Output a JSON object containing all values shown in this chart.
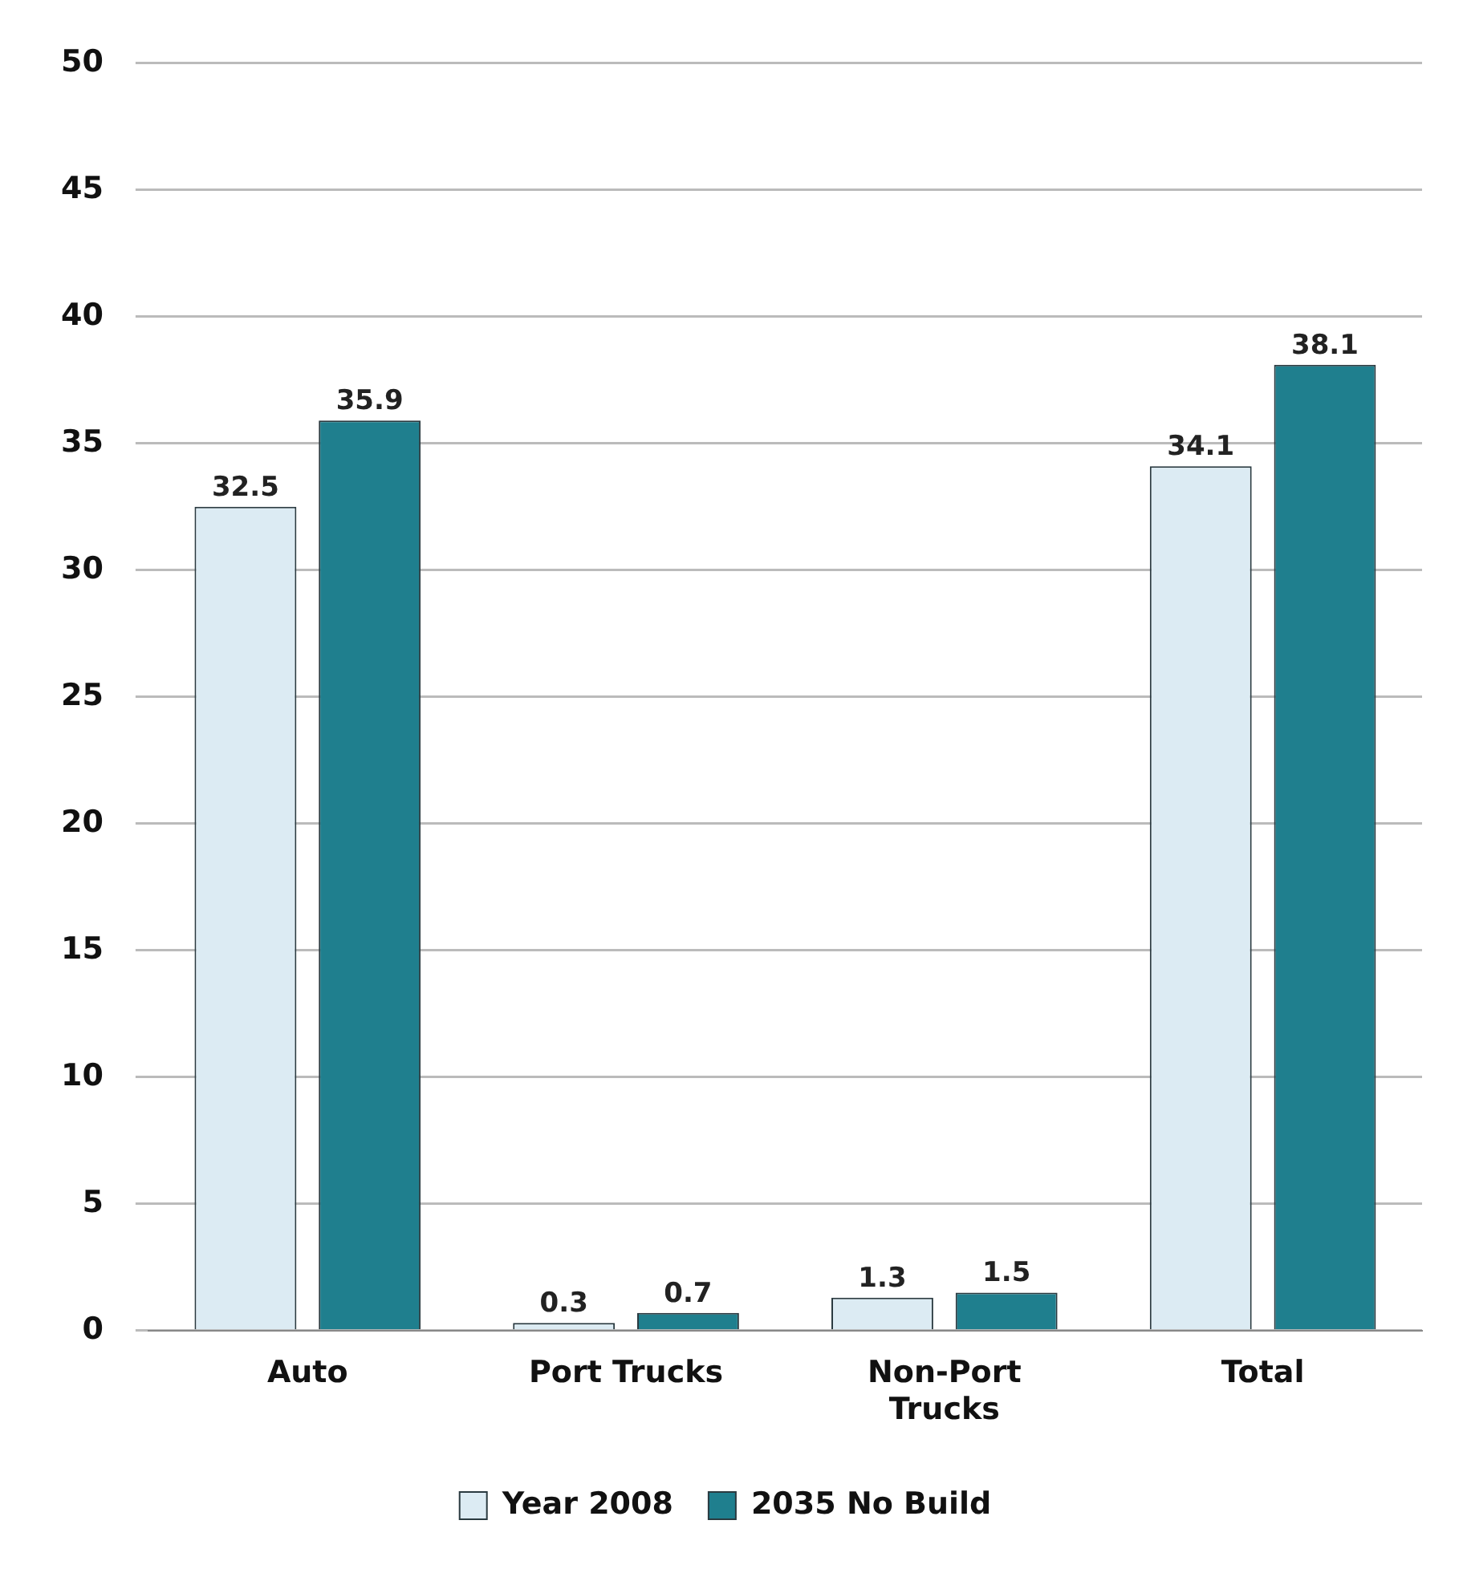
{
  "chart_data": {
    "type": "bar",
    "categories": [
      "Auto",
      "Port Trucks",
      "Non-Port Trucks",
      "Total"
    ],
    "series": [
      {
        "name": "Year 2008",
        "color": "#dcebf3",
        "values": [
          32.5,
          0.3,
          1.3,
          34.1
        ]
      },
      {
        "name": "2035 No Build",
        "color": "#1f7f8e",
        "values": [
          35.9,
          0.7,
          1.5,
          38.1
        ]
      }
    ],
    "ylim": [
      0,
      50
    ],
    "yticks": [
      0,
      5,
      10,
      15,
      20,
      25,
      30,
      35,
      40,
      45,
      50
    ],
    "grid": "y",
    "legend": "bottom",
    "data_labels": true
  }
}
